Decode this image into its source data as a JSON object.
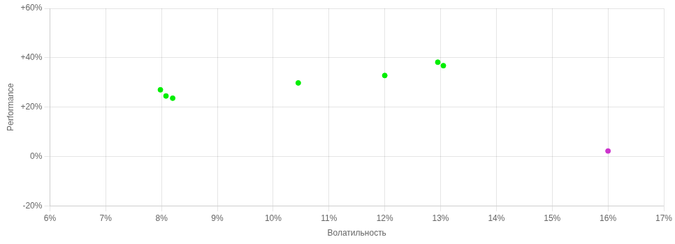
{
  "chart_data": {
    "type": "scatter",
    "xlabel": "Волатильность",
    "ylabel": "Performance",
    "xlim": [
      0.06,
      0.17
    ],
    "ylim": [
      -0.2,
      0.6
    ],
    "xticks": [
      {
        "value": 0.06,
        "label": "6%"
      },
      {
        "value": 0.07,
        "label": "7%"
      },
      {
        "value": 0.08,
        "label": "8%"
      },
      {
        "value": 0.09,
        "label": "9%"
      },
      {
        "value": 0.1,
        "label": "10%"
      },
      {
        "value": 0.11,
        "label": "11%"
      },
      {
        "value": 0.12,
        "label": "12%"
      },
      {
        "value": 0.13,
        "label": "13%"
      },
      {
        "value": 0.14,
        "label": "14%"
      },
      {
        "value": 0.15,
        "label": "15%"
      },
      {
        "value": 0.16,
        "label": "16%"
      },
      {
        "value": 0.17,
        "label": "17%"
      }
    ],
    "yticks": [
      {
        "value": -0.2,
        "label": "-20%"
      },
      {
        "value": 0.0,
        "label": "0%"
      },
      {
        "value": 0.2,
        "label": "+20%"
      },
      {
        "value": 0.4,
        "label": "+40%"
      },
      {
        "value": 0.6,
        "label": "+60%"
      }
    ],
    "grid": true,
    "series": [
      {
        "color": "#00ee00",
        "x": [
          0.0798,
          0.0808,
          0.082,
          0.1045,
          0.12,
          0.1295,
          0.1305
        ],
        "values": [
          0.27,
          0.245,
          0.236,
          0.298,
          0.328,
          0.382,
          0.368
        ]
      },
      {
        "color": "#cc33cc",
        "x": [
          0.16
        ],
        "values": [
          0.022
        ]
      }
    ]
  }
}
